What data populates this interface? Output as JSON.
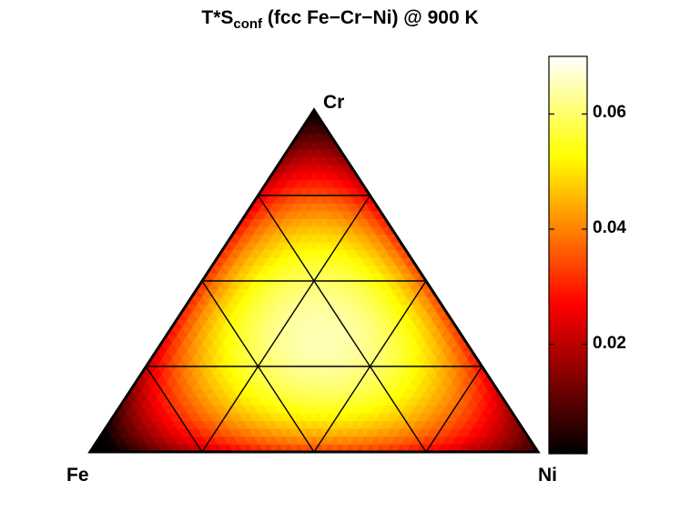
{
  "chart_data": {
    "type": "heatmap",
    "subtype": "ternary",
    "title": {
      "main": "T*S",
      "subscript": "conf",
      "rest": " (fcc Fe−Cr−Ni) @ 900 K"
    },
    "vertices": {
      "left": "Fe",
      "top": "Cr",
      "right": "Ni"
    },
    "grid_divisions": 4,
    "colormap": "hot",
    "colorbar": {
      "range": [
        0.001,
        0.07
      ],
      "ticks": [
        {
          "value": 0.02,
          "label": "0.02"
        },
        {
          "value": 0.04,
          "label": "0.04"
        },
        {
          "value": 0.06,
          "label": "0.06"
        }
      ]
    },
    "field_peak": {
      "fe": 0.33,
      "cr": 0.33,
      "ni": 0.34,
      "value": 0.065
    }
  }
}
